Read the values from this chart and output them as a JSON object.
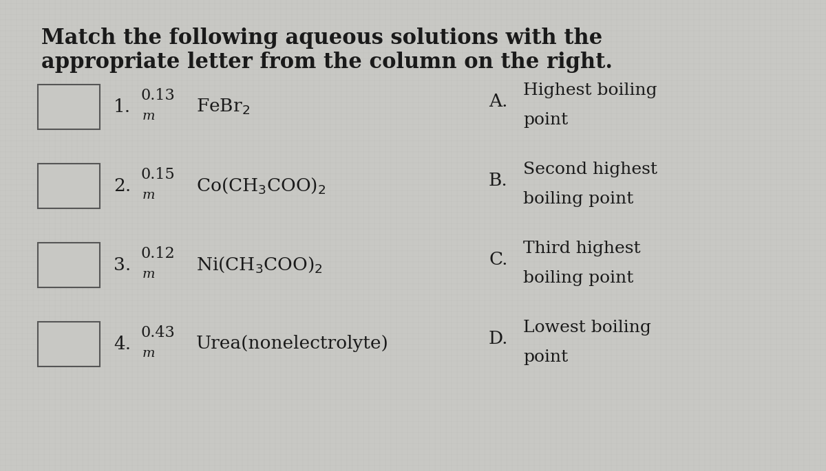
{
  "title_line1": "Match the following aqueous solutions with the",
  "title_line2": "appropriate letter from the column on the right.",
  "background_color": "#c8c8c4",
  "text_color": "#1a1a1a",
  "rows": [
    {
      "number": "1.",
      "molality": "0.13",
      "formula": "FeBr$_2$"
    },
    {
      "number": "2.",
      "molality": "0.15",
      "formula": "Co(CH$_3$COO)$_2$"
    },
    {
      "number": "3.",
      "molality": "0.12",
      "formula": "Ni(CH$_3$COO)$_2$"
    },
    {
      "number": "4.",
      "molality": "0.43",
      "formula": "Urea(nonelectrolyte)"
    }
  ],
  "right_column": [
    {
      "letter": "A.",
      "line1": "Highest boiling",
      "line2": "point"
    },
    {
      "letter": "B.",
      "line1": "Second highest",
      "line2": "boiling point"
    },
    {
      "letter": "C.",
      "line1": "Third highest",
      "line2": "boiling point"
    },
    {
      "letter": "D.",
      "line1": "Lowest boiling",
      "line2": "point"
    }
  ],
  "figwidth": 12.0,
  "figheight": 6.85,
  "title_fontsize": 22,
  "body_fontsize": 19,
  "small_fontsize": 16
}
